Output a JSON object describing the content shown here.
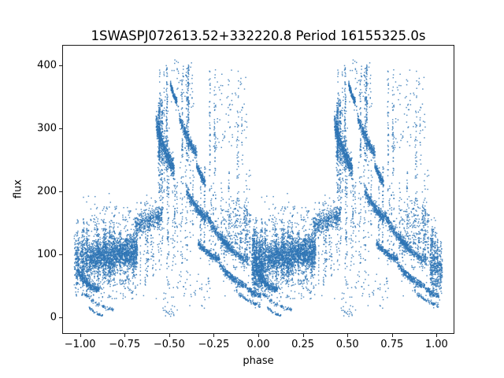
{
  "chart_data": {
    "type": "scatter",
    "title": "1SWASPJ072613.52+332220.8 Period 16155325.0s",
    "xlabel": "phase",
    "ylabel": "flux",
    "xlim": [
      -1.1,
      1.1
    ],
    "ylim": [
      -26,
      433
    ],
    "xticks": [
      -1.0,
      -0.75,
      -0.5,
      -0.25,
      0.0,
      0.25,
      0.5,
      0.75,
      1.0
    ],
    "xtick_labels": [
      "−1.00",
      "−0.75",
      "−0.50",
      "−0.25",
      "0.00",
      "0.25",
      "0.50",
      "0.75",
      "1.00"
    ],
    "yticks": [
      0,
      100,
      200,
      300,
      400
    ],
    "ytick_labels": [
      "0",
      "100",
      "200",
      "300",
      "400"
    ],
    "legend": null,
    "grid": false,
    "marker_color": "#2e75b5",
    "marker_alpha": 0.78,
    "marker_size_px": 1.5,
    "point_count_approx": 18900,
    "duplication": "phase-folded light curve plotted twice: every point (p, flux) with p in [0,1) is drawn at p and at p-1",
    "encoding_note": "Dense scatter is described as generative clusters. kinds: band = gaussian cloud drifting f0->f1 with sd; vstreaks = n vertical streaks at random phases, each spanning [lo..hi] flux with pts points; arc = dense descending diagonal segment from f0 to f1 with thickness th and downward sag; dots = sparse uniform points.",
    "clusters": [
      {
        "kind": "band",
        "p": [
          -0.04,
          0.045
        ],
        "f": [
          90,
          95
        ],
        "sd": 21,
        "n": 380
      },
      {
        "kind": "band",
        "p": [
          0.045,
          0.315
        ],
        "f": [
          96,
          107
        ],
        "sd": 14,
        "n": 1900
      },
      {
        "kind": "band",
        "p": [
          0.3,
          0.455
        ],
        "f": [
          147,
          164
        ],
        "sd": 9,
        "n": 420
      },
      {
        "kind": "band",
        "p": [
          0.78,
          0.95
        ],
        "f": [
          132,
          132
        ],
        "sd": 30,
        "n": 260
      },
      {
        "kind": "band",
        "p": [
          0.955,
          1.025
        ],
        "f": [
          84,
          80
        ],
        "sd": 20,
        "n": 340
      },
      {
        "kind": "vstreaks",
        "p": [
          -0.04,
          0.045
        ],
        "streaks": 12,
        "lo": [
          25,
          60
        ],
        "hi": [
          110,
          168
        ],
        "pts": 20
      },
      {
        "kind": "vstreaks",
        "p": [
          0.045,
          0.315
        ],
        "streaks": 28,
        "lo": [
          48,
          75
        ],
        "hi": [
          126,
          170
        ],
        "pts": 16
      },
      {
        "kind": "vstreaks",
        "p": [
          0.3,
          0.455
        ],
        "streaks": 7,
        "lo": [
          50,
          90
        ],
        "hi": [
          118,
          158
        ],
        "pts": 12
      },
      {
        "kind": "vstreaks",
        "p": [
          0.425,
          0.5
        ],
        "streaks": 13,
        "lo": [
          180,
          260
        ],
        "hi": [
          330,
          412
        ],
        "pts": 34
      },
      {
        "kind": "vstreaks",
        "p": [
          0.43,
          0.5
        ],
        "streaks": 5,
        "lo": [
          60,
          120
        ],
        "hi": [
          250,
          345
        ],
        "pts": 24
      },
      {
        "kind": "vstreaks",
        "p": [
          0.45,
          0.7
        ],
        "streaks": 16,
        "lo": [
          60,
          130
        ],
        "hi": [
          190,
          280
        ],
        "pts": 16
      },
      {
        "kind": "vstreaks",
        "p": [
          0.565,
          0.605
        ],
        "streaks": 4,
        "lo": [
          235,
          270
        ],
        "hi": [
          390,
          412
        ],
        "pts": 45
      },
      {
        "kind": "vstreaks",
        "p": [
          0.7,
          0.75
        ],
        "streaks": 4,
        "lo": [
          200,
          240
        ],
        "hi": [
          340,
          408
        ],
        "pts": 20
      },
      {
        "kind": "vstreaks",
        "p": [
          0.86,
          0.92
        ],
        "streaks": 3,
        "lo": [
          210,
          240
        ],
        "hi": [
          300,
          396
        ],
        "pts": 14
      },
      {
        "kind": "vstreaks",
        "p": [
          0.7,
          0.955
        ],
        "streaks": 18,
        "lo": [
          65,
          110
        ],
        "hi": [
          165,
          250
        ],
        "pts": 14
      },
      {
        "kind": "vstreaks",
        "p": [
          0.955,
          1.02
        ],
        "streaks": 10,
        "lo": [
          30,
          60
        ],
        "hi": [
          115,
          168
        ],
        "pts": 18
      },
      {
        "kind": "arc",
        "p": [
          0.5,
          0.535
        ],
        "f": [
          372,
          344
        ],
        "th": 9,
        "sag": 2,
        "n": 150
      },
      {
        "kind": "arc",
        "p": [
          0.42,
          0.52
        ],
        "f": [
          310,
          238
        ],
        "th": 24,
        "sag": 8,
        "n": 620
      },
      {
        "kind": "arc",
        "p": [
          0.55,
          0.645
        ],
        "f": [
          320,
          262
        ],
        "th": 14,
        "sag": 5,
        "n": 320
      },
      {
        "kind": "arc",
        "p": [
          0.59,
          0.7
        ],
        "f": [
          205,
          160
        ],
        "th": 14,
        "sag": 6,
        "n": 330
      },
      {
        "kind": "arc",
        "p": [
          0.647,
          0.695
        ],
        "f": [
          245,
          215
        ],
        "th": 10,
        "sag": 3,
        "n": 180
      },
      {
        "kind": "arc",
        "p": [
          0.656,
          0.775
        ],
        "f": [
          120,
          95
        ],
        "th": 9,
        "sag": 4,
        "n": 280
      },
      {
        "kind": "arc",
        "p": [
          0.7,
          0.832
        ],
        "f": [
          166,
          116
        ],
        "th": 12,
        "sag": 6,
        "n": 320
      },
      {
        "kind": "arc",
        "p": [
          0.775,
          0.907
        ],
        "f": [
          88,
          54
        ],
        "th": 9,
        "sag": 5,
        "n": 260
      },
      {
        "kind": "arc",
        "p": [
          0.78,
          0.935
        ],
        "f": [
          129,
          92
        ],
        "th": 10,
        "sag": 5,
        "n": 240
      },
      {
        "kind": "arc",
        "p": [
          0.907,
          1.005
        ],
        "f": [
          56,
          36
        ],
        "th": 7,
        "sag": 3,
        "n": 140
      },
      {
        "kind": "arc",
        "p": [
          0.87,
          1.005
        ],
        "f": [
          44,
          20
        ],
        "th": 6,
        "sag": 3,
        "n": 80
      },
      {
        "kind": "arc",
        "p": [
          -0.02,
          0.1
        ],
        "f": [
          76,
          48
        ],
        "th": 10,
        "sag": 8,
        "n": 300
      },
      {
        "kind": "arc",
        "p": [
          0.015,
          0.18
        ],
        "f": [
          40,
          14
        ],
        "th": 4,
        "sag": 4,
        "n": 80
      },
      {
        "kind": "arc",
        "p": [
          0.04,
          0.12
        ],
        "f": [
          18,
          6
        ],
        "th": 4,
        "sag": 2,
        "n": 40
      },
      {
        "kind": "dots",
        "p": [
          0.0,
          0.45
        ],
        "f": [
          20,
          200
        ],
        "n": 80
      },
      {
        "kind": "dots",
        "p": [
          0.45,
          1.0
        ],
        "f": [
          30,
          240
        ],
        "n": 70
      },
      {
        "kind": "dots",
        "p": [
          0.49,
          0.63
        ],
        "f": [
          330,
          412
        ],
        "n": 60
      },
      {
        "kind": "dots",
        "p": [
          0.74,
          0.85
        ],
        "f": [
          270,
          400
        ],
        "n": 55
      },
      {
        "kind": "dots",
        "p": [
          0.86,
          0.93
        ],
        "f": [
          280,
          395
        ],
        "n": 25
      },
      {
        "kind": "dots",
        "p": [
          0.05,
          0.31
        ],
        "f": [
          32,
          62
        ],
        "n": 90
      },
      {
        "kind": "dots",
        "p": [
          0.45,
          0.72
        ],
        "f": [
          14,
          60
        ],
        "n": 50
      },
      {
        "kind": "dots",
        "p": [
          0.46,
          0.52
        ],
        "f": [
          4,
          14
        ],
        "n": 15
      },
      {
        "kind": "dots",
        "p": [
          0.05,
          0.31
        ],
        "f": [
          140,
          178
        ],
        "n": 70
      },
      {
        "kind": "dots",
        "p": [
          0.33,
          0.45
        ],
        "f": [
          168,
          188
        ],
        "n": 20
      }
    ]
  }
}
